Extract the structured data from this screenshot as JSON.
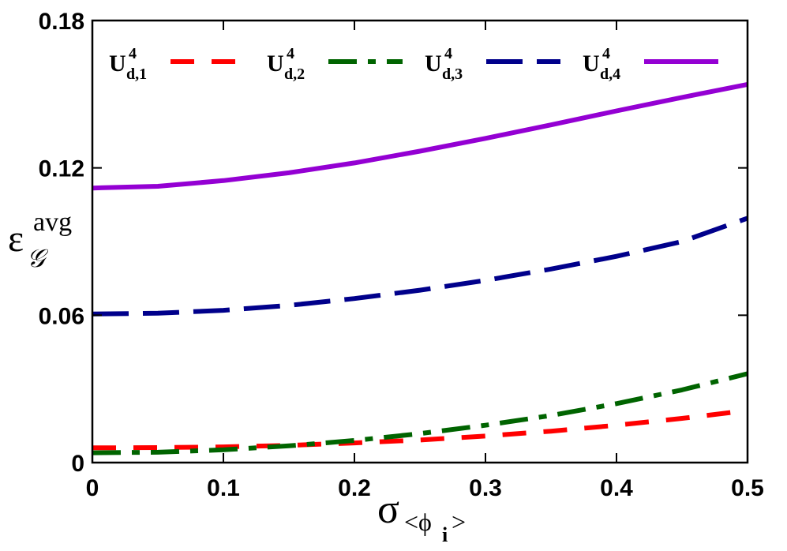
{
  "chart_data": {
    "type": "line",
    "title": "",
    "xlabel": "σ",
    "xlabel_sub": "<ϕ",
    "xlabel_subsub": "i",
    "xlabel_subend": ">",
    "ylabel": "ε",
    "ylabel_sup": "avg",
    "ylabel_sub": "𝒢",
    "xlim": [
      0,
      0.5
    ],
    "ylim": [
      0,
      0.18
    ],
    "x_ticks": [
      0,
      0.1,
      0.2,
      0.3,
      0.4,
      0.5
    ],
    "x_tick_labels": [
      "0",
      "0.1",
      "0.2",
      "0.3",
      "0.4",
      "0.5"
    ],
    "y_ticks": [
      0,
      0.06,
      0.12,
      0.18
    ],
    "y_tick_labels": [
      "0",
      "0.06",
      "0.12",
      "0.18"
    ],
    "grid": false,
    "legend_position": "top",
    "x": [
      0,
      0.05,
      0.1,
      0.15,
      0.2,
      0.25,
      0.3,
      0.35,
      0.4,
      0.45,
      0.5
    ],
    "series": [
      {
        "name": "U",
        "name_sup": "4",
        "name_sub": "d,1",
        "color": "#ff0000",
        "dash": "short-dash",
        "values": [
          0.006,
          0.0061,
          0.0064,
          0.007,
          0.008,
          0.0092,
          0.0108,
          0.0128,
          0.0152,
          0.018,
          0.0212
        ]
      },
      {
        "name": "U",
        "name_sup": "4",
        "name_sub": "d,2",
        "color": "#006400",
        "dash": "dash-dot",
        "values": [
          0.004,
          0.0042,
          0.0052,
          0.0068,
          0.009,
          0.0118,
          0.0152,
          0.0192,
          0.024,
          0.0296,
          0.0362
        ]
      },
      {
        "name": "U",
        "name_sup": "4",
        "name_sub": "d,3",
        "color": "#00008b",
        "dash": "long-dash",
        "values": [
          0.0605,
          0.0608,
          0.062,
          0.064,
          0.0668,
          0.0702,
          0.0742,
          0.0788,
          0.084,
          0.09,
          0.0995
        ]
      },
      {
        "name": "U",
        "name_sup": "4",
        "name_sub": "d,4",
        "color": "#9400d3",
        "dash": "solid",
        "values": [
          0.1118,
          0.1125,
          0.1148,
          0.118,
          0.122,
          0.1268,
          0.132,
          0.1375,
          0.1432,
          0.1487,
          0.154
        ]
      }
    ]
  }
}
